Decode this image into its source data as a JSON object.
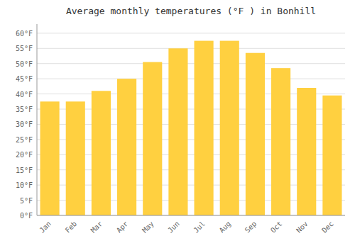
{
  "chart_data": {
    "type": "bar",
    "title": "Average monthly temperatures (°F ) in Bonhill",
    "categories": [
      "Jan",
      "Feb",
      "Mar",
      "Apr",
      "May",
      "Jun",
      "Jul",
      "Aug",
      "Sep",
      "Oct",
      "Nov",
      "Dec"
    ],
    "values": [
      37.5,
      37.5,
      41,
      45,
      50.5,
      55,
      57.5,
      57.5,
      53.5,
      48.5,
      42,
      39.5
    ],
    "color": "#FFD040",
    "ylim": [
      0,
      63
    ],
    "yticks": [
      {
        "value": 0,
        "label": "0°F"
      },
      {
        "value": 5,
        "label": "5°F"
      },
      {
        "value": 10,
        "label": "10°F"
      },
      {
        "value": 15,
        "label": "15°F"
      },
      {
        "value": 20,
        "label": "20°F"
      },
      {
        "value": 25,
        "label": "25°F"
      },
      {
        "value": 30,
        "label": "30°F"
      },
      {
        "value": 35,
        "label": "35°F"
      },
      {
        "value": 40,
        "label": "40°F"
      },
      {
        "value": 45,
        "label": "45°F"
      },
      {
        "value": 50,
        "label": "50°F"
      },
      {
        "value": 55,
        "label": "55°F"
      },
      {
        "value": 60,
        "label": "60°F"
      }
    ],
    "grid": true
  }
}
